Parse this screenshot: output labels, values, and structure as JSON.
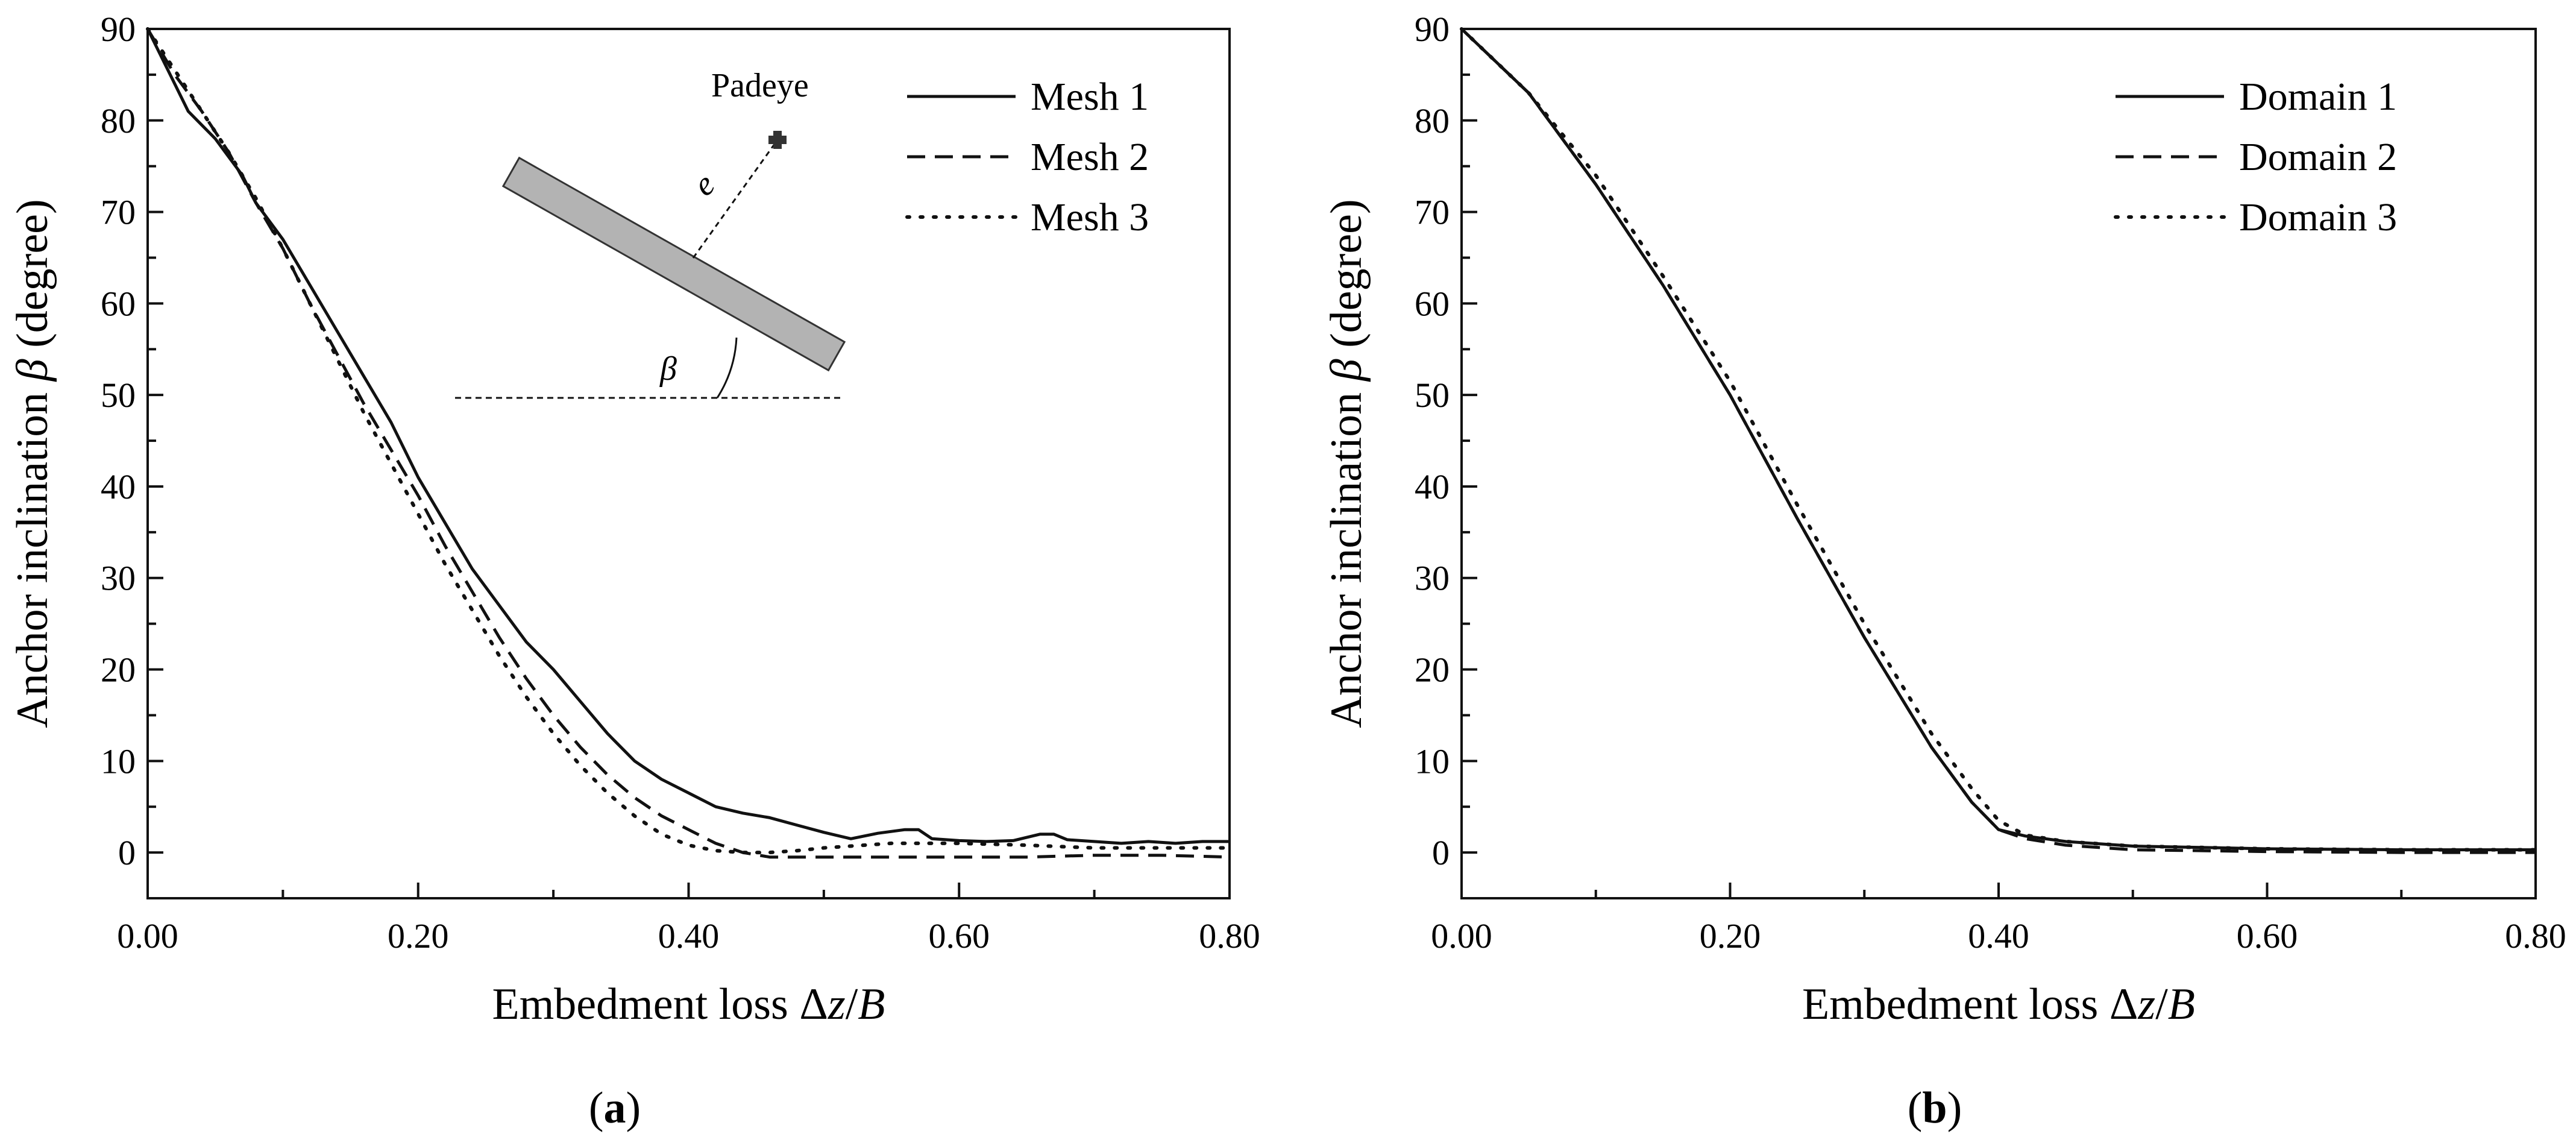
{
  "chart_data": [
    {
      "type": "line",
      "panel_label": "(a)",
      "xlabel": "Embedment loss Δz/B",
      "ylabel": "Anchor inclination β (degree)",
      "xlim": [
        0,
        0.8
      ],
      "ylim": [
        -5,
        90
      ],
      "x_ticks": [
        "0.00",
        "0.20",
        "0.40",
        "0.60",
        "0.80"
      ],
      "y_ticks": [
        "0",
        "10",
        "20",
        "30",
        "40",
        "50",
        "60",
        "70",
        "80",
        "90"
      ],
      "legend_position": "top-right",
      "grid": false,
      "series": [
        {
          "name": "Mesh 1",
          "style": "solid",
          "x": [
            0.0,
            0.01,
            0.02,
            0.03,
            0.05,
            0.07,
            0.08,
            0.1,
            0.12,
            0.14,
            0.16,
            0.18,
            0.2,
            0.22,
            0.24,
            0.26,
            0.28,
            0.3,
            0.32,
            0.34,
            0.36,
            0.38,
            0.4,
            0.42,
            0.44,
            0.46,
            0.48,
            0.5,
            0.52,
            0.54,
            0.56,
            0.57,
            0.58,
            0.6,
            0.62,
            0.64,
            0.66,
            0.67,
            0.68,
            0.7,
            0.72,
            0.74,
            0.76,
            0.78,
            0.8
          ],
          "y": [
            90,
            87,
            84,
            81,
            78,
            74,
            71,
            67,
            62,
            57,
            52,
            47,
            41,
            36,
            31,
            27,
            23,
            20,
            16.5,
            13,
            10,
            8,
            6.5,
            5,
            4.3,
            3.8,
            3,
            2.2,
            1.5,
            2.1,
            2.5,
            2.5,
            1.5,
            1.3,
            1.2,
            1.3,
            2,
            2,
            1.4,
            1.2,
            1,
            1.2,
            1,
            1.2,
            1.2
          ]
        },
        {
          "name": "Mesh 2",
          "style": "dashed",
          "x": [
            0.0,
            0.02,
            0.04,
            0.06,
            0.08,
            0.1,
            0.12,
            0.14,
            0.16,
            0.18,
            0.2,
            0.22,
            0.24,
            0.26,
            0.28,
            0.3,
            0.32,
            0.34,
            0.36,
            0.38,
            0.4,
            0.42,
            0.44,
            0.46,
            0.48,
            0.5,
            0.55,
            0.6,
            0.65,
            0.7,
            0.75,
            0.8
          ],
          "y": [
            90,
            85,
            81,
            76.5,
            71,
            66,
            60,
            54.5,
            49,
            44,
            39,
            33.5,
            28.5,
            23.5,
            19,
            15,
            11.5,
            8.5,
            6,
            4,
            2.5,
            1,
            0,
            -0.5,
            -0.5,
            -0.5,
            -0.5,
            -0.5,
            -0.5,
            -0.3,
            -0.3,
            -0.5
          ]
        },
        {
          "name": "Mesh 3",
          "style": "dotted",
          "x": [
            0.0,
            0.02,
            0.04,
            0.06,
            0.08,
            0.1,
            0.12,
            0.14,
            0.16,
            0.18,
            0.2,
            0.22,
            0.24,
            0.26,
            0.28,
            0.3,
            0.32,
            0.34,
            0.36,
            0.38,
            0.4,
            0.42,
            0.44,
            0.46,
            0.48,
            0.5,
            0.55,
            0.6,
            0.65,
            0.7,
            0.75,
            0.8
          ],
          "y": [
            90,
            85.5,
            81,
            76.5,
            71.5,
            66,
            60,
            54,
            48,
            42.5,
            37,
            31.5,
            26.5,
            21.5,
            17,
            13,
            9.5,
            6.5,
            4,
            2,
            0.8,
            0.2,
            0,
            0,
            0.2,
            0.5,
            1,
            1,
            0.8,
            0.5,
            0.5,
            0.5
          ]
        }
      ],
      "inset": {
        "padeye_label": "Padeye",
        "eccentricity_label": "e",
        "angle_label": "β",
        "plate_color": "#b3b3b3"
      }
    },
    {
      "type": "line",
      "panel_label": "(b)",
      "xlabel": "Embedment loss Δz/B",
      "ylabel": "Anchor inclination β (degree)",
      "xlim": [
        0,
        0.8
      ],
      "ylim": [
        -5,
        90
      ],
      "x_ticks": [
        "0.00",
        "0.20",
        "0.40",
        "0.60",
        "0.80"
      ],
      "y_ticks": [
        "0",
        "10",
        "20",
        "30",
        "40",
        "50",
        "60",
        "70",
        "80",
        "90"
      ],
      "legend_position": "top-right",
      "grid": false,
      "series": [
        {
          "name": "Domain 1",
          "style": "solid",
          "x": [
            0.0,
            0.05,
            0.1,
            0.15,
            0.2,
            0.25,
            0.3,
            0.35,
            0.38,
            0.4,
            0.42,
            0.45,
            0.5,
            0.6,
            0.7,
            0.8
          ],
          "y": [
            90,
            83,
            73,
            62,
            50,
            36.5,
            23.5,
            11.5,
            5.5,
            2.5,
            1.8,
            1.2,
            0.7,
            0.4,
            0.3,
            0.3
          ]
        },
        {
          "name": "Domain 2",
          "style": "dashed",
          "x": [
            0.0,
            0.05,
            0.1,
            0.15,
            0.2,
            0.25,
            0.3,
            0.35,
            0.38,
            0.4,
            0.42,
            0.45,
            0.5,
            0.6,
            0.7,
            0.8
          ],
          "y": [
            90,
            83,
            73,
            62,
            50,
            36.5,
            23.5,
            11.5,
            5.5,
            2.5,
            1.5,
            0.8,
            0.3,
            0.1,
            0.0,
            0.0
          ]
        },
        {
          "name": "Domain 3",
          "style": "dotted",
          "x": [
            0.0,
            0.05,
            0.1,
            0.15,
            0.2,
            0.25,
            0.3,
            0.35,
            0.38,
            0.4,
            0.42,
            0.45,
            0.5,
            0.6,
            0.7,
            0.8
          ],
          "y": [
            90,
            83,
            74,
            63,
            51.5,
            38,
            25,
            13,
            7,
            3.5,
            1.9,
            1.2,
            0.7,
            0.4,
            0.3,
            0.3
          ]
        }
      ]
    }
  ]
}
